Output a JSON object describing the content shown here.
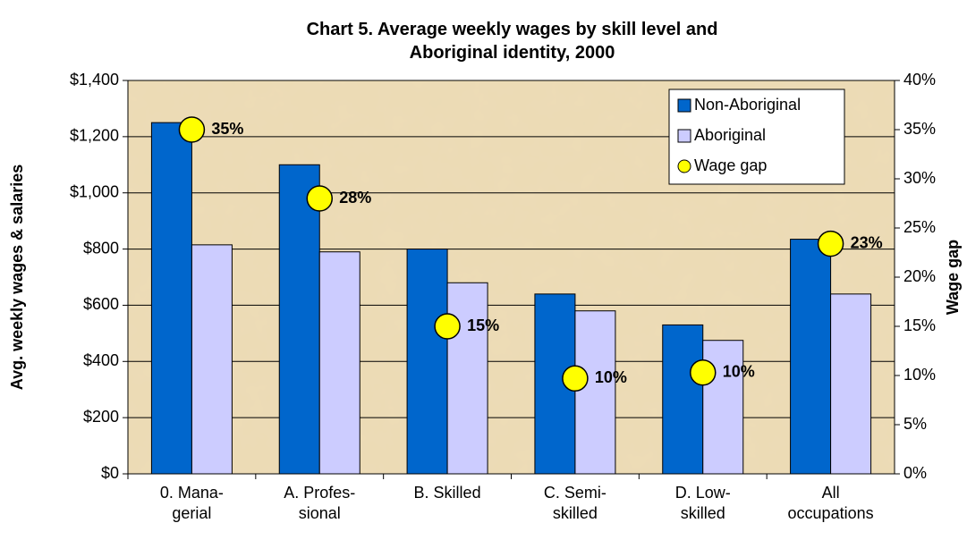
{
  "chart_data": {
    "type": "bar",
    "title": "Chart 5. Average weekly wages by skill level and\nAboriginal identity, 2000",
    "ylabel": "Avg. weekly wages & salaries",
    "y2label": "Wage gap",
    "categories": [
      "0. Mana-\ngerial",
      "A. Profes-\nsional",
      "B. Skilled",
      "C. Semi-\nskilled",
      "D. Low-\nskilled",
      "All\noccupations"
    ],
    "series": [
      {
        "name": "Non-Aboriginal",
        "color": "#0066cc",
        "values": [
          1250,
          1100,
          800,
          640,
          530,
          835
        ]
      },
      {
        "name": "Aboriginal",
        "color": "#ccccff",
        "values": [
          815,
          790,
          680,
          580,
          475,
          640
        ]
      },
      {
        "name": "Wage gap",
        "color": "#ffff00",
        "axis": "y2",
        "type": "scatter",
        "values": [
          35,
          28,
          15,
          9.7,
          10.3,
          23.4
        ],
        "value_labels": [
          "35%",
          "28%",
          "15%",
          "10%",
          "10%",
          "23%"
        ]
      }
    ],
    "ylim": [
      0,
      1400
    ],
    "yticks": [
      {
        "value": 0,
        "label": "$0"
      },
      {
        "value": 200,
        "label": "$200"
      },
      {
        "value": 400,
        "label": "$400"
      },
      {
        "value": 600,
        "label": "$600"
      },
      {
        "value": 800,
        "label": "$800"
      },
      {
        "value": 1000,
        "label": "$1,000"
      },
      {
        "value": 1200,
        "label": "$1,200"
      },
      {
        "value": 1400,
        "label": "$1,400"
      }
    ],
    "y2lim": [
      0,
      40
    ],
    "y2ticks": [
      {
        "value": 0,
        "label": "0%"
      },
      {
        "value": 5,
        "label": "5%"
      },
      {
        "value": 10,
        "label": "10%"
      },
      {
        "value": 15,
        "label": "15%"
      },
      {
        "value": 20,
        "label": "20%"
      },
      {
        "value": 25,
        "label": "25%"
      },
      {
        "value": 30,
        "label": "30%"
      },
      {
        "value": 35,
        "label": "35%"
      },
      {
        "value": 40,
        "label": "40%"
      }
    ],
    "grid": true,
    "legend": "upper right"
  }
}
